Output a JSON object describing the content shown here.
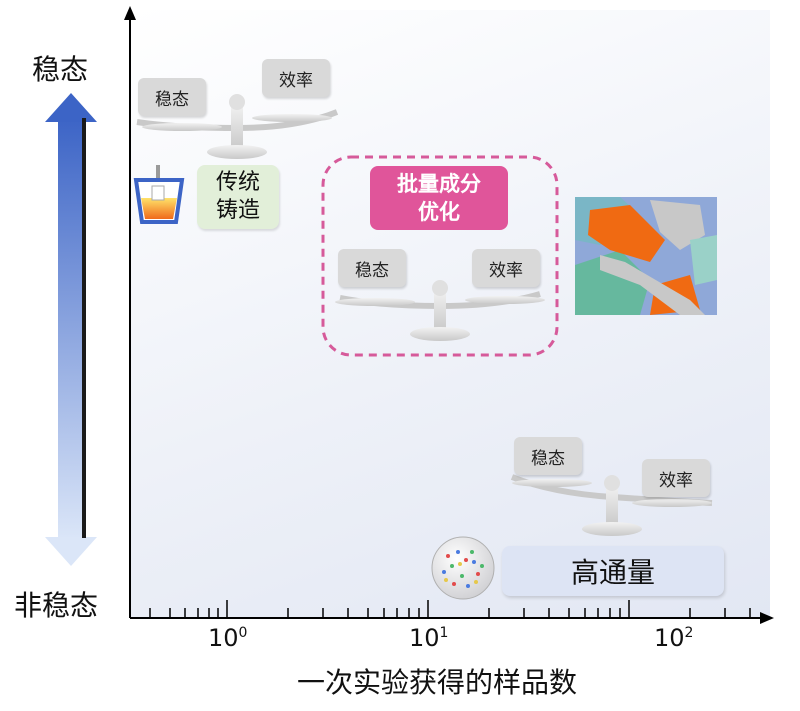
{
  "y_axis": {
    "top_label": "稳态",
    "bottom_label": "非稳态"
  },
  "x_axis": {
    "title": "一次实验获得的样品数",
    "tick_labels": [
      {
        "base": "10",
        "exp": "0"
      },
      {
        "base": "10",
        "exp": "1"
      },
      {
        "base": "10",
        "exp": "2"
      }
    ]
  },
  "balances": [
    {
      "left": "稳态",
      "right": "效率"
    },
    {
      "left": "稳态",
      "right": "效率"
    },
    {
      "left": "稳态",
      "right": "效率"
    }
  ],
  "methods": {
    "traditional": {
      "line1": "传统",
      "line2": "铸造",
      "color": "#e2efd9"
    },
    "batch": {
      "line1": "批量成分",
      "line2": "优化",
      "color": "#e0559a"
    },
    "high_throughput": {
      "label": "高通量",
      "color": "#dde4f4"
    }
  },
  "colors": {
    "arrow_top": "#3c64c6",
    "arrow_bottom": "#dbe6f8",
    "dashed_border": "#d65a9a"
  }
}
